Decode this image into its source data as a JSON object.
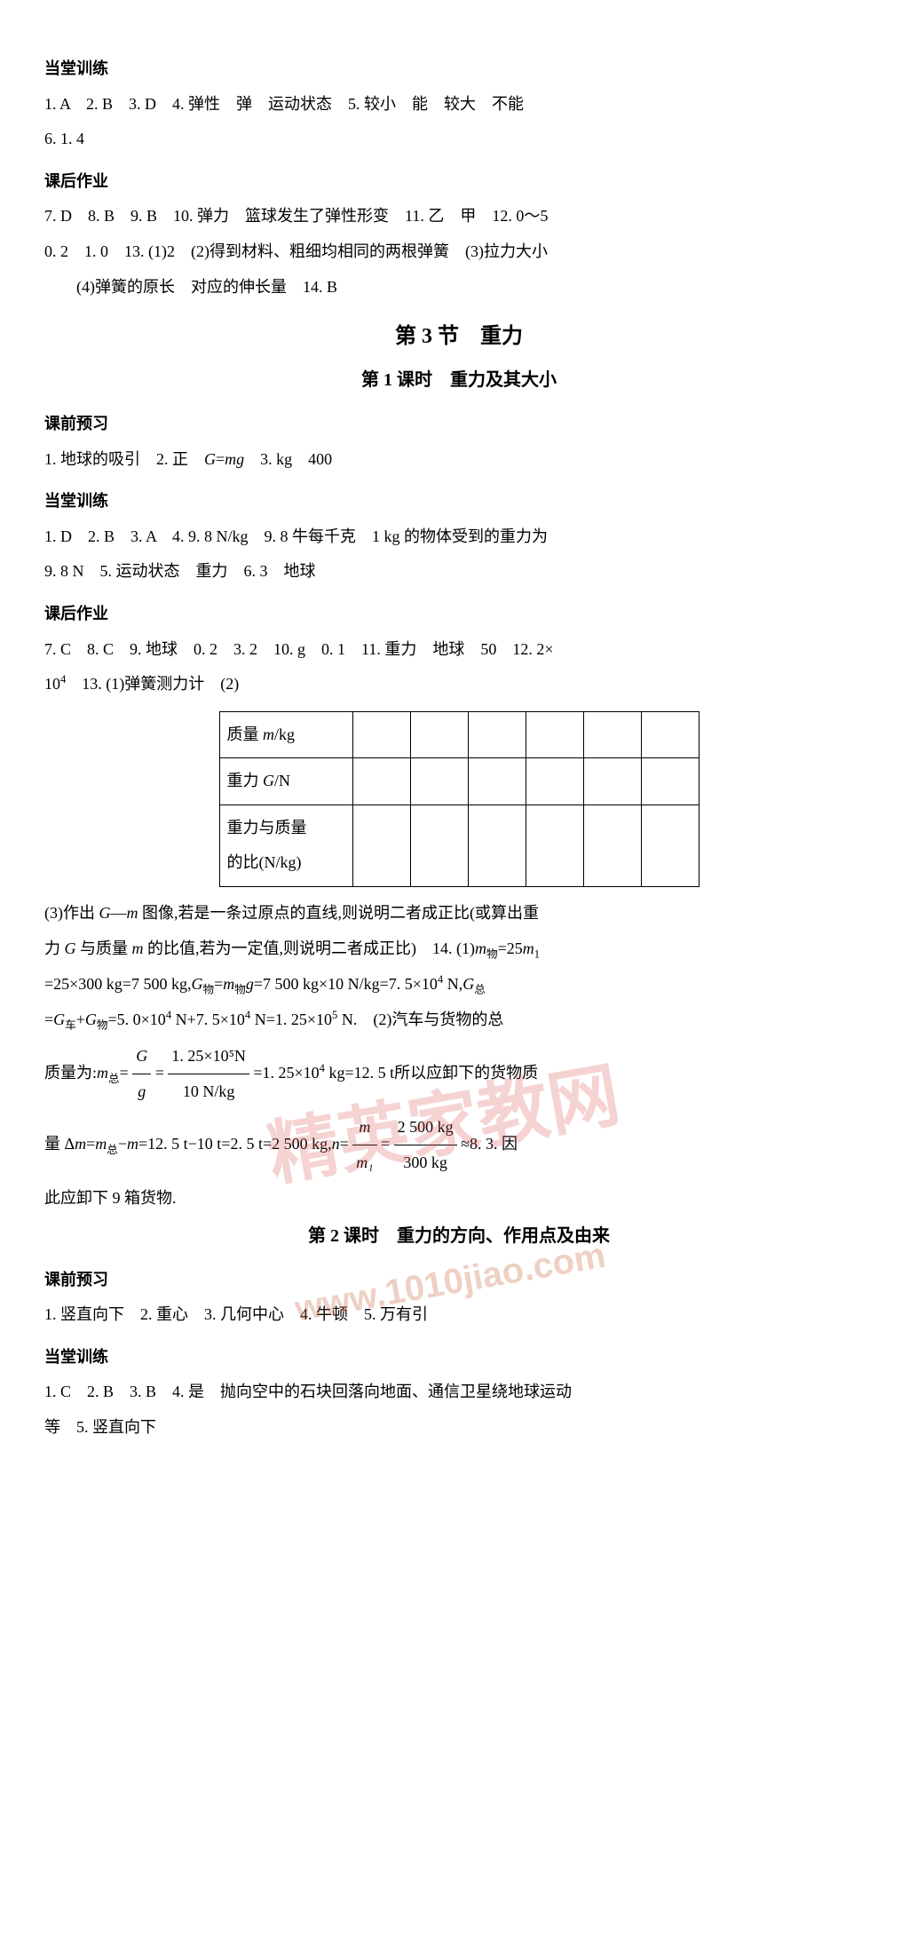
{
  "sections": {
    "s1_title": "当堂训练",
    "s1_line1": "1. A　2. B　3. D　4. 弹性　弹　运动状态　5. 较小　能　较大　不能",
    "s1_line2": "6. 1. 4",
    "s2_title": "课后作业",
    "s2_line1": "7. D　8. B　9. B　10. 弹力　篮球发生了弹性形变　11. 乙　甲　12. 0～5",
    "s2_line2": "0. 2　1. 0　13. (1)2　(2)得到材料、粗细均相同的两根弹簧　(3)拉力大小",
    "s2_line3": "　　(4)弹簧的原长　对应的伸长量　14. B",
    "chapter": "第 3 节　重力",
    "sub1": "第 1 课时　重力及其大小",
    "s3_title": "课前预习",
    "s3_line1": "1. 地球的吸引　2. 正　G=mg　3. kg　400",
    "s4_title": "当堂训练",
    "s4_line1": "1. D　2. B　3. A　4. 9. 8 N/kg　9. 8 牛每千克　1 kg 的物体受到的重力为",
    "s4_line2": "9. 8 N　5. 运动状态　重力　6. 3　地球",
    "s5_title": "课后作业",
    "s5_line1": "7. C　8. C　9. 地球　0. 2　3. 2　10. g　0. 1　11. 重力　地球　50　12. 2×",
    "s5_line2_a": "10",
    "s5_line2_b": "　13. (1)弹簧测力计　(2)",
    "table_r1": "质量 m/kg",
    "table_r2": "重力 G/N",
    "table_r3a": "重力与质量",
    "table_r3b": "的比(N/kg)",
    "s6_line1": "(3)作出 G—m 图像,若是一条过原点的直线,则说明二者成正比(或算出重",
    "s6_line2_a": "力 G 与质量 m 的比值,若为一定值,则说明二者成正比)　14. (1)m",
    "s6_line2_b": "=25m",
    "s6_line3_a": "=25×300 kg=7 500 kg,G",
    "s6_line3_b": "=m",
    "s6_line3_c": "g=7 500 kg×10 N/kg=7. 5×10",
    "s6_line3_d": " N,G",
    "s6_line4_a": "=G",
    "s6_line4_b": "+G",
    "s6_line4_c": "=5. 0×10",
    "s6_line4_d": " N+7. 5×10",
    "s6_line4_e": " N=1. 25×10",
    "s6_line4_f": " N.　(2)汽车与货物的总",
    "s6_line5_a": "质量为:m",
    "s6_line5_b": "=",
    "frac1_num": "G",
    "frac1_den": "g",
    "s6_line5_c": "=",
    "frac2_num": "1. 25×10⁵N",
    "frac2_den": "10 N/kg",
    "s6_line5_d": "=1. 25×10",
    "s6_line5_e": " kg=12. 5 t所以应卸下的货物质",
    "s6_line6_a": "量 Δm=m",
    "s6_line6_b": "−m=12. 5 t−10 t=2. 5 t=2 500 kg,n=",
    "frac3_num": "m",
    "frac3_den": "m₁",
    "s6_line6_c": "=",
    "frac4_num": "2 500 kg",
    "frac4_den": "300 kg",
    "s6_line6_d": "≈8. 3. 因",
    "s6_line7": "此应卸下 9 箱货物.",
    "sub2": "第 2 课时　重力的方向、作用点及由来",
    "s7_title": "课前预习",
    "s7_line1": "1. 竖直向下　2. 重心　3. 几何中心　4. 牛顿　5. 万有引",
    "s8_title": "当堂训练",
    "s8_line1": "1. C　2. B　3. B　4. 是　抛向空中的石块回落向地面、通信卫星绕地球运动",
    "s8_line2": "等　5. 竖直向下"
  },
  "subs": {
    "wu": "物",
    "zong": "总",
    "che": "车",
    "one": "1"
  },
  "sups": {
    "four": "4",
    "five": "5"
  },
  "watermarks": {
    "wm1": "精英家教网",
    "wm2": "精英",
    "wm3": "www.1010jiao.com"
  }
}
